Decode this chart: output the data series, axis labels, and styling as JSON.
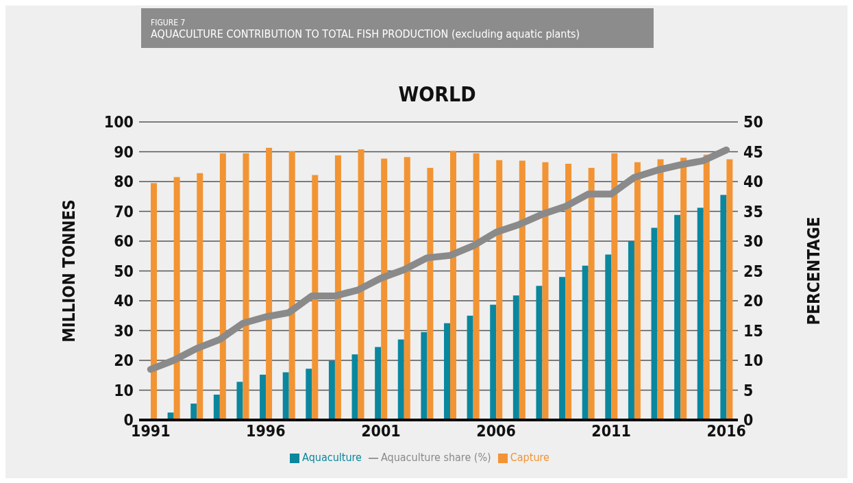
{
  "chart_data": {
    "type": "bar",
    "title": "WORLD",
    "annotations": [
      "FIGURE 7",
      "AQUACULTURE CONTRIBUTION TO TOTAL FISH PRODUCTION (excluding aquatic plants)"
    ],
    "ylabel": "MILLION TONNES",
    "y2label": "PERCENTAGE",
    "categories": [
      "1991",
      null,
      null,
      null,
      null,
      "1996",
      null,
      null,
      null,
      null,
      "2001",
      null,
      null,
      null,
      null,
      "2006",
      null,
      null,
      null,
      null,
      "2011",
      null,
      null,
      null,
      null,
      "2016"
    ],
    "series": [
      {
        "name": "Aquaculture",
        "color": "#0a879e",
        "values": [
          null,
          2.5,
          5.5,
          8.5,
          12.8,
          15.2,
          16,
          17.2,
          19.8,
          22,
          24.5,
          27,
          29.5,
          32.5,
          35,
          38.7,
          41.8,
          45,
          48,
          51.8,
          55.5,
          60,
          64.5,
          68.8,
          71.2,
          75.5
        ]
      },
      {
        "name": "Capture",
        "color": "#f29434",
        "values": [
          79.5,
          81.5,
          82.8,
          89.5,
          89.5,
          91.3,
          90.2,
          82.2,
          88.8,
          90.8,
          87.7,
          88.2,
          84.6,
          90.3,
          89.5,
          87.2,
          87,
          86.5,
          86,
          84.6,
          89.5,
          86.5,
          87.5,
          88,
          89,
          87.5
        ]
      },
      {
        "name": "Aquaculture share (%)",
        "type": "line",
        "axis": "y2",
        "color": "#8a8a8a",
        "values": [
          8.5,
          10,
          12,
          13.5,
          16.2,
          17.3,
          18,
          20.8,
          20.8,
          21.8,
          23.8,
          25.2,
          27.2,
          27.6,
          29.2,
          31.5,
          32.8,
          34.5,
          35.8,
          37.9,
          37.9,
          40.7,
          41.9,
          42.8,
          43.5,
          45.3
        ]
      }
    ],
    "ylim": [
      0,
      100
    ],
    "yticks": [
      0,
      10,
      20,
      30,
      40,
      50,
      60,
      70,
      80,
      90,
      100
    ],
    "y2lim": [
      0,
      50
    ],
    "y2ticks": [
      0,
      5,
      10,
      15,
      20,
      25,
      30,
      35,
      40,
      45,
      50
    ],
    "grid": "y",
    "legend": "bottom",
    "line_style": "solid",
    "marker": "none"
  }
}
